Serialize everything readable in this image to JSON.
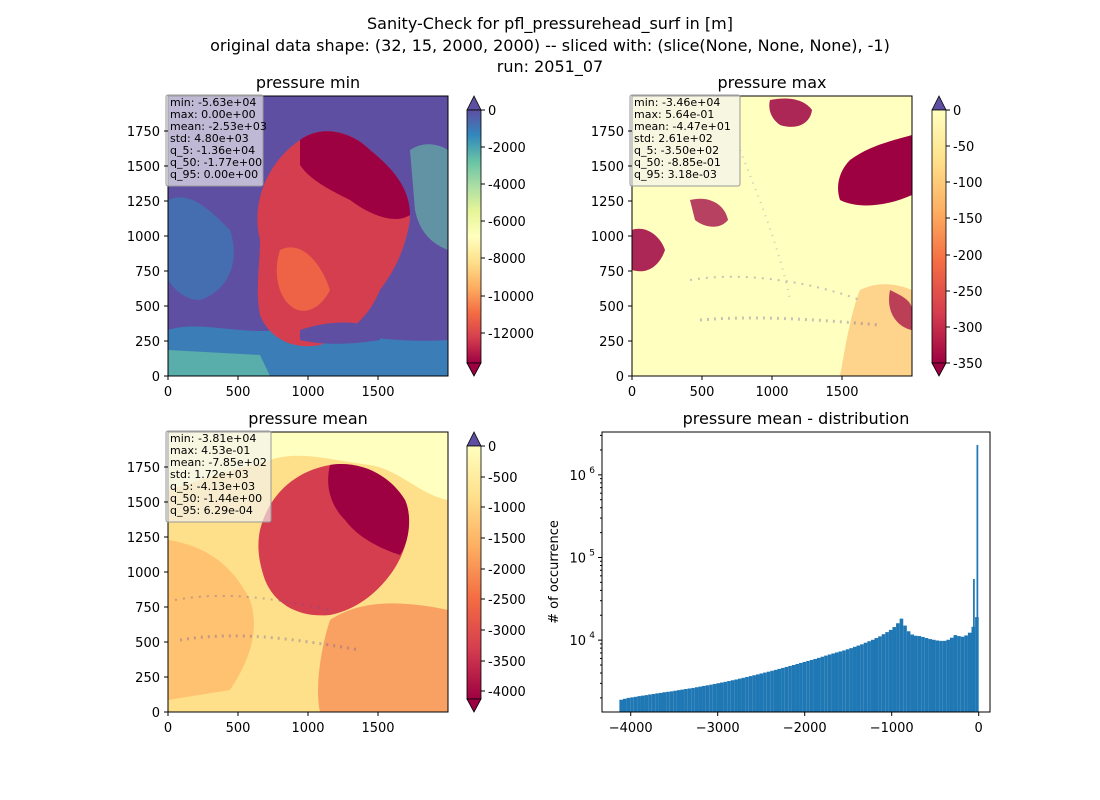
{
  "figure": {
    "title_lines": [
      "Sanity-Check for pfl_pressurehead_surf in [m]",
      "original data shape: (32, 15, 2000, 2000) -- sliced with: (slice(None, None, None), -1)",
      "run: 2051_07"
    ]
  },
  "chart_data": [
    {
      "type": "heatmap",
      "title": "pressure min",
      "x_ticks": [
        0,
        500,
        1000,
        1500
      ],
      "y_ticks": [
        0,
        250,
        500,
        750,
        1000,
        1250,
        1500,
        1750
      ],
      "xlim": [
        0,
        2000
      ],
      "ylim": [
        0,
        2000
      ],
      "colormap": "Spectral",
      "colorbar": {
        "ticks": [
          0,
          -2000,
          -4000,
          -6000,
          -8000,
          -10000,
          -12000
        ],
        "range": [
          -14000,
          0
        ],
        "extend": "both"
      },
      "stats": [
        "min: -5.63e+04",
        "max: 0.00e+00",
        "mean: -2.53e+03",
        "std: 4.80e+03",
        "q_5: -1.36e+04",
        "q_50: -1.77e+00",
        "q_95: 0.00e+00"
      ]
    },
    {
      "type": "heatmap",
      "title": "pressure max",
      "x_ticks": [
        0,
        500,
        1000,
        1500
      ],
      "y_ticks": [
        0,
        250,
        500,
        750,
        1000,
        1250,
        1500,
        1750
      ],
      "xlim": [
        0,
        2000
      ],
      "ylim": [
        0,
        2000
      ],
      "colormap": "Spectral",
      "colorbar": {
        "ticks": [
          0,
          -50,
          -100,
          -150,
          -200,
          -250,
          -300,
          -350
        ],
        "range": [
          -350,
          0
        ],
        "extend": "both"
      },
      "stats": [
        "min: -3.46e+04",
        "max: 5.64e-01",
        "mean: -4.47e+01",
        "std: 2.61e+02",
        "q_5: -3.50e+02",
        "q_50: -8.85e-01",
        "q_95: 3.18e-03"
      ]
    },
    {
      "type": "heatmap",
      "title": "pressure mean",
      "x_ticks": [
        0,
        500,
        1000,
        1500
      ],
      "y_ticks": [
        0,
        250,
        500,
        750,
        1000,
        1250,
        1500,
        1750
      ],
      "xlim": [
        0,
        2000
      ],
      "ylim": [
        0,
        2000
      ],
      "colormap": "Spectral",
      "colorbar": {
        "ticks": [
          0,
          -500,
          -1000,
          -1500,
          -2000,
          -2500,
          -3000,
          -3500,
          -4000
        ],
        "range": [
          -4130,
          0
        ],
        "extend": "both"
      },
      "stats": [
        "min: -3.81e+04",
        "max: 4.53e-01",
        "mean: -7.85e+02",
        "std: 1.72e+03",
        "q_5: -4.13e+03",
        "q_50: -1.44e+00",
        "q_95: 6.29e-04"
      ]
    },
    {
      "type": "bar",
      "title": "pressure mean - distribution",
      "xlabel": "",
      "ylabel": "# of occurrence",
      "x_ticks": [
        -4000,
        -3000,
        -2000,
        -1000,
        0
      ],
      "x_tick_labels": [
        "−4000",
        "−3000",
        "−2000",
        "−1000",
        "0"
      ],
      "xlim": [
        -4330,
        130
      ],
      "y_scale": "log",
      "ylim": [
        1350,
        3300000
      ],
      "y_ticks": [
        {
          "value": 10000,
          "base": "10",
          "exp": "4"
        },
        {
          "value": 100000,
          "base": "10",
          "exp": "5"
        },
        {
          "value": 1000000,
          "base": "10",
          "exp": "6"
        }
      ],
      "bar_color": "#1f77b4",
      "bins": {
        "start": -4130,
        "end": 0,
        "count": 100
      },
      "values": [
        1900,
        1950,
        2000,
        2030,
        2060,
        2100,
        2130,
        2160,
        2200,
        2230,
        2270,
        2300,
        2340,
        2370,
        2400,
        2440,
        2480,
        2520,
        2560,
        2600,
        2640,
        2690,
        2740,
        2790,
        2840,
        2890,
        2950,
        3010,
        3070,
        3130,
        3200,
        3270,
        3340,
        3420,
        3500,
        3580,
        3670,
        3760,
        3850,
        3950,
        4050,
        4150,
        4260,
        4370,
        4490,
        4610,
        4740,
        4870,
        5000,
        5150,
        5300,
        5450,
        5600,
        5760,
        5920,
        6100,
        6300,
        6500,
        6700,
        6900,
        7100,
        7300,
        7500,
        7750,
        8000,
        8300,
        8600,
        8900,
        9300,
        9700,
        10100,
        10600,
        11100,
        11800,
        12500,
        13300,
        14400,
        16000,
        18200,
        15000,
        12800,
        11700,
        11300,
        11200,
        10900,
        10600,
        10300,
        10100,
        9900,
        9800,
        9800,
        10100,
        10700,
        11500,
        11200,
        11000,
        11400,
        12300,
        14500,
        19000
      ],
      "peak_values": [
        {
          "x": -55,
          "value": 55000
        },
        {
          "x": -15,
          "value": 2300000
        }
      ]
    }
  ]
}
